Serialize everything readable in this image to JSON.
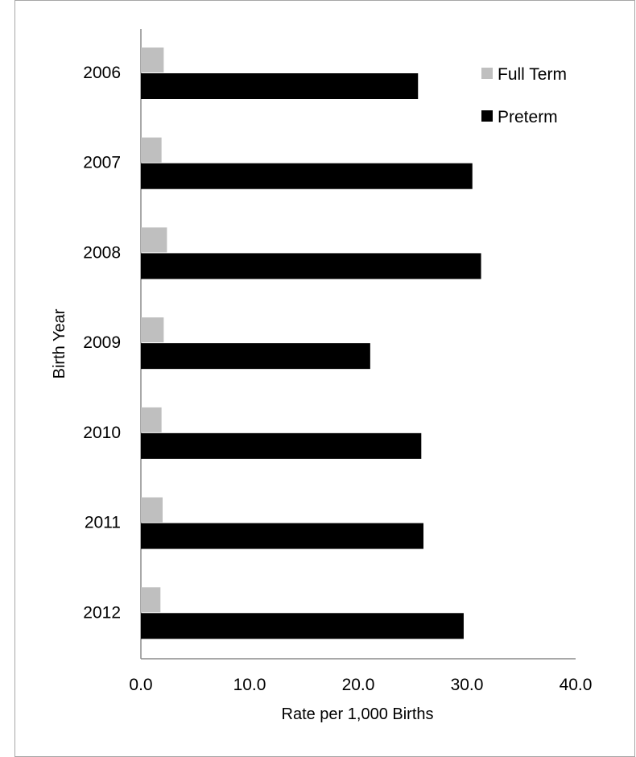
{
  "chart_data": {
    "type": "bar",
    "orientation": "horizontal",
    "title": "",
    "xlabel": "Rate per 1,000 Births",
    "ylabel": "Birth Year",
    "categories": [
      "2006",
      "2007",
      "2008",
      "2009",
      "2010",
      "2011",
      "2012"
    ],
    "series": [
      {
        "name": "Full Term",
        "color": "#bfbfbf",
        "values": [
          2.1,
          1.9,
          2.4,
          2.1,
          1.9,
          2.0,
          1.8
        ]
      },
      {
        "name": "Preterm",
        "color": "#000000",
        "values": [
          25.5,
          30.5,
          31.3,
          21.1,
          25.8,
          26.0,
          29.7
        ]
      }
    ],
    "xlim": [
      0,
      40
    ],
    "xticks": [
      "0.0",
      "10.0",
      "20.0",
      "30.0",
      "40.0"
    ],
    "grid": false,
    "legend_position": "top-right"
  }
}
